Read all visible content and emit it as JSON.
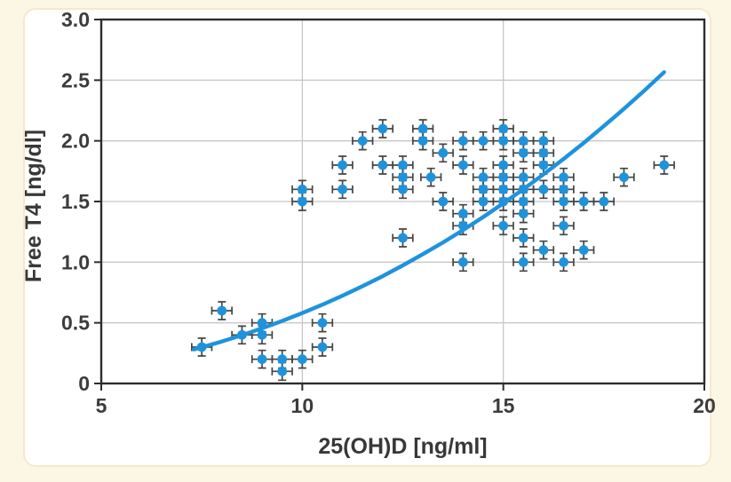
{
  "page": {
    "background_color": "#FCF6E5",
    "panel_color": "#FFFFFF",
    "panel_border_color": "#F5E9CD"
  },
  "chart_data": {
    "type": "scatter",
    "title": "",
    "xlabel": "25(OH)D [ng/ml]",
    "ylabel": "Free T4 [ng/dl]",
    "xlim": [
      5,
      20
    ],
    "ylim": [
      0,
      3.0
    ],
    "x_ticks": [
      {
        "value": 5,
        "label": "5"
      },
      {
        "value": 10,
        "label": "10"
      },
      {
        "value": 15,
        "label": "15"
      },
      {
        "value": 20,
        "label": "20"
      }
    ],
    "y_ticks": [
      {
        "value": 0,
        "label": "0"
      },
      {
        "value": 0.5,
        "label": "0.5"
      },
      {
        "value": 1.0,
        "label": "1.0"
      },
      {
        "value": 1.5,
        "label": "1.5"
      },
      {
        "value": 2.0,
        "label": "2.0"
      },
      {
        "value": 2.5,
        "label": "2.5"
      },
      {
        "value": 3.0,
        "label": "3.0"
      }
    ],
    "grid_x": [
      10,
      15
    ],
    "grid_y": [
      0.5,
      1.0,
      1.5,
      2.0,
      2.5
    ],
    "grid_on": true,
    "legend": "none",
    "x_error": 0.25,
    "y_error": 0.073,
    "points": [
      [
        7.5,
        0.3
      ],
      [
        8,
        0.6
      ],
      [
        8.5,
        0.4
      ],
      [
        9,
        0.5
      ],
      [
        9,
        0.4
      ],
      [
        9,
        0.2
      ],
      [
        9.5,
        0.2
      ],
      [
        9.5,
        0.1
      ],
      [
        10,
        0.2
      ],
      [
        10,
        1.5
      ],
      [
        10,
        1.6
      ],
      [
        10.5,
        0.5
      ],
      [
        10.5,
        0.3
      ],
      [
        11,
        1.8
      ],
      [
        11,
        1.6
      ],
      [
        11.5,
        2.0
      ],
      [
        12,
        2.1
      ],
      [
        12,
        1.8
      ],
      [
        12.5,
        1.8
      ],
      [
        12.5,
        1.7
      ],
      [
        12.5,
        1.6
      ],
      [
        12.5,
        1.2
      ],
      [
        13,
        2.1
      ],
      [
        13,
        2.0
      ],
      [
        13.2,
        1.7
      ],
      [
        13.5,
        1.9
      ],
      [
        13.5,
        1.5
      ],
      [
        14,
        2.0
      ],
      [
        14,
        1.8
      ],
      [
        14,
        1.4
      ],
      [
        14,
        1.3
      ],
      [
        14,
        1.0
      ],
      [
        14.5,
        2.0
      ],
      [
        14.5,
        1.7
      ],
      [
        14.5,
        1.6
      ],
      [
        14.5,
        1.5
      ],
      [
        15,
        2.1
      ],
      [
        15,
        2.0
      ],
      [
        15,
        1.8
      ],
      [
        15,
        1.7
      ],
      [
        15,
        1.6
      ],
      [
        15,
        1.5
      ],
      [
        15,
        1.3
      ],
      [
        15.5,
        2.0
      ],
      [
        15.5,
        1.9
      ],
      [
        15.5,
        1.7
      ],
      [
        15.5,
        1.6
      ],
      [
        15.5,
        1.5
      ],
      [
        15.5,
        1.4
      ],
      [
        15.5,
        1.2
      ],
      [
        15.5,
        1.0
      ],
      [
        16,
        2.0
      ],
      [
        16,
        1.9
      ],
      [
        16,
        1.8
      ],
      [
        16,
        1.6
      ],
      [
        16,
        1.1
      ],
      [
        16.5,
        1.7
      ],
      [
        16.5,
        1.6
      ],
      [
        16.5,
        1.5
      ],
      [
        16.5,
        1.3
      ],
      [
        16.5,
        1.0
      ],
      [
        17,
        1.5
      ],
      [
        17,
        1.1
      ],
      [
        17.5,
        1.5
      ],
      [
        18,
        1.7
      ],
      [
        19,
        1.8
      ]
    ],
    "trend_curve": {
      "description": "increasing power-law fit curve",
      "samples": [
        [
          7.3,
          0.28
        ],
        [
          8,
          0.346
        ],
        [
          8.5,
          0.398
        ],
        [
          9,
          0.455
        ],
        [
          9.5,
          0.515
        ],
        [
          10,
          0.58
        ],
        [
          10.5,
          0.65
        ],
        [
          11,
          0.724
        ],
        [
          11.5,
          0.802
        ],
        [
          12,
          0.885
        ],
        [
          12.5,
          0.973
        ],
        [
          13,
          1.066
        ],
        [
          13.5,
          1.163
        ],
        [
          14,
          1.265
        ],
        [
          14.5,
          1.372
        ],
        [
          15,
          1.485
        ],
        [
          15.5,
          1.602
        ],
        [
          16,
          1.724
        ],
        [
          16.5,
          1.851
        ],
        [
          17,
          1.983
        ],
        [
          17.5,
          2.121
        ],
        [
          18,
          2.264
        ],
        [
          18.5,
          2.412
        ],
        [
          19,
          2.566
        ]
      ]
    },
    "colors": {
      "marker": "#1E93DC",
      "curve": "#1E93DC",
      "error_bar": "#454545",
      "grid": "#C8C8C8",
      "axis": "#2D2D2D",
      "text": "#383838"
    }
  }
}
